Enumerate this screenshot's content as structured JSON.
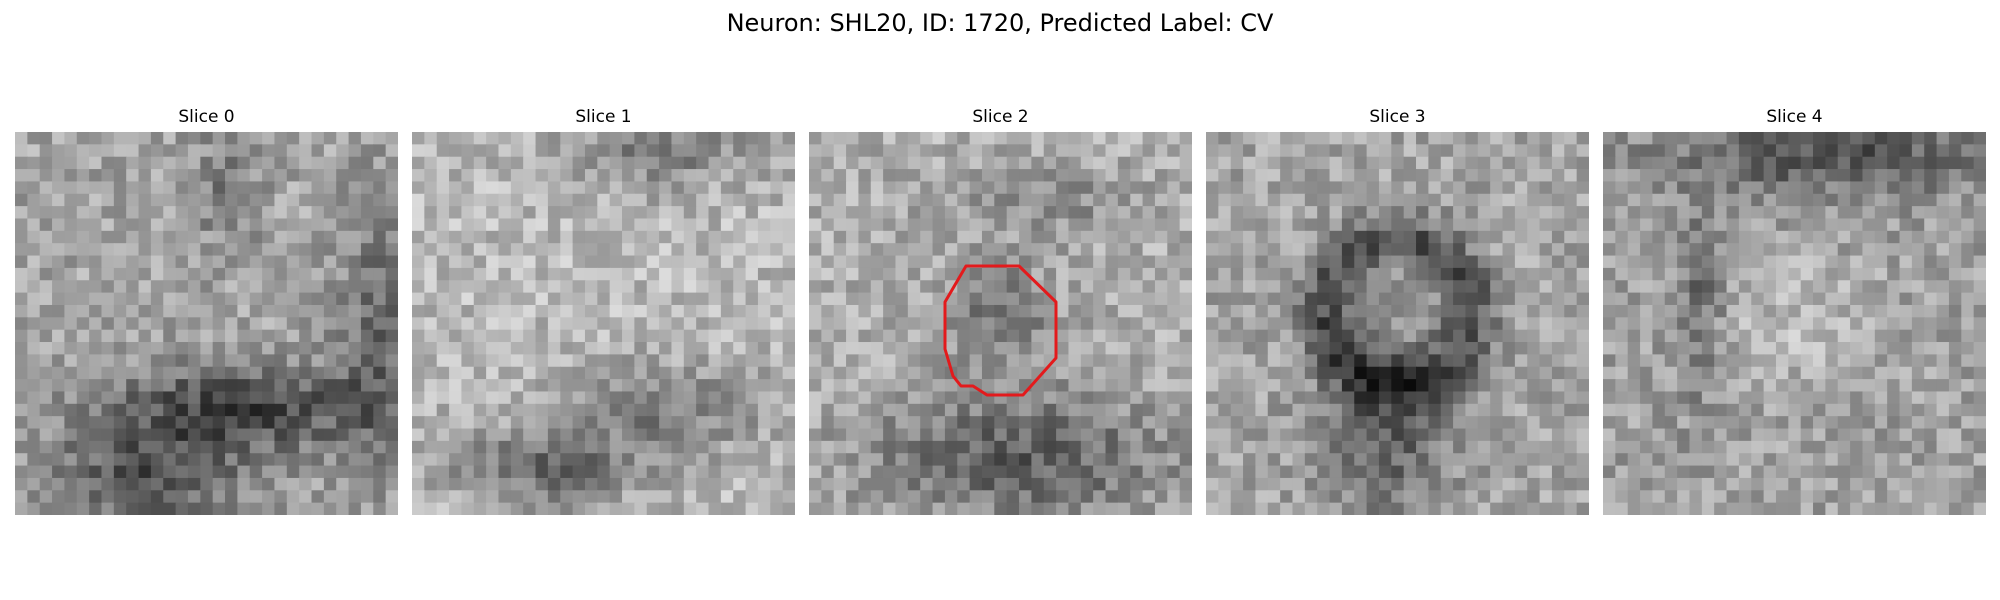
{
  "figure": {
    "title": "Neuron: SHL20, ID: 1720, Predicted Label: CV",
    "slices": [
      {
        "label": "Slice 0",
        "pattern": "dark-lower-right"
      },
      {
        "label": "Slice 1",
        "pattern": "light-with-dark-bottom"
      },
      {
        "label": "Slice 2",
        "pattern": "center-blob-dark-bottom"
      },
      {
        "label": "Slice 3",
        "pattern": "dark-ring"
      },
      {
        "label": "Slice 4",
        "pattern": "noisy-dark-top"
      }
    ],
    "annotation": {
      "slice_index": 2,
      "shape": "octagon",
      "color": "#e31a1c"
    }
  }
}
